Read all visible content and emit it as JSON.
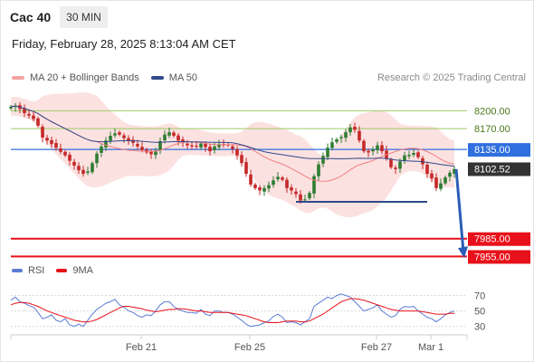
{
  "header": {
    "symbol": "Cac 40",
    "interval": "30 MIN",
    "datetime": "Friday, February 28, 2025 8:13:04 AM CET"
  },
  "credit": "Research © 2025 Trading Central",
  "colors": {
    "bollinger_fill": "#f9c9c9",
    "ma20": "#f08080",
    "ma50": "#2e4a8a",
    "resistance_green": "#9ccc65",
    "level_blue": "#2f6fde",
    "level_red": "#e8101a",
    "arrow": "#2b5db8",
    "candle_up": "#2e7d32",
    "candle_down": "#c62828",
    "rsi": "#5b7bd5",
    "rsi_ma": "#e8101a",
    "last_price": "#333333"
  },
  "chart_data": [
    {
      "type": "candlestick",
      "legend": [
        {
          "label": "MA 20 + Bollinger Bands",
          "color": "#f08080"
        },
        {
          "label": "MA 50",
          "color": "#2e4a8a"
        }
      ],
      "ylim": [
        7945,
        8225
      ],
      "levels": [
        {
          "label": "8200.00",
          "value": 8200,
          "kind": "green-line"
        },
        {
          "label": "8170.00",
          "value": 8170,
          "kind": "green-line"
        },
        {
          "label": "8135.00",
          "value": 8135,
          "kind": "blue-box"
        },
        {
          "label": "8102.52",
          "value": 8102.52,
          "kind": "last-price"
        },
        {
          "label": "7985.00",
          "value": 7985,
          "kind": "red-box"
        },
        {
          "label": "7955.00",
          "value": 7955,
          "kind": "red-box"
        }
      ],
      "support_line": {
        "value": 8047,
        "from_index": 63,
        "to_index": 92
      },
      "forecast_arrow": {
        "from_value": 8102,
        "to_value": 7960
      },
      "closes": [
        8207,
        8209,
        8203,
        8196,
        8192,
        8186,
        8175,
        8155,
        8150,
        8144,
        8138,
        8131,
        8125,
        8116,
        8108,
        8100,
        8094,
        8098,
        8112,
        8128,
        8140,
        8150,
        8158,
        8162,
        8160,
        8154,
        8150,
        8146,
        8140,
        8134,
        8130,
        8127,
        8133,
        8149,
        8160,
        8164,
        8158,
        8150,
        8146,
        8142,
        8140,
        8140,
        8145,
        8139,
        8132,
        8140,
        8144,
        8142,
        8142,
        8136,
        8125,
        8112,
        8094,
        8076,
        8070,
        8066,
        8070,
        8075,
        8083,
        8089,
        8084,
        8070,
        8066,
        8060,
        8049,
        8051,
        8062,
        8090,
        8110,
        8124,
        8138,
        8147,
        8152,
        8156,
        8164,
        8172,
        8168,
        8150,
        8132,
        8130,
        8135,
        8142,
        8132,
        8120,
        8105,
        8102,
        8115,
        8125,
        8126,
        8129,
        8122,
        8110,
        8094,
        8086,
        8070,
        8078,
        8088,
        8096,
        8102
      ],
      "x_ticks": [
        {
          "label": "Feb 21",
          "index": 24
        },
        {
          "label": "Feb 25",
          "index": 48
        },
        {
          "label": "Feb 27",
          "index": 76
        },
        {
          "label": "Mar 1",
          "index": 88
        }
      ]
    },
    {
      "type": "line",
      "legend": [
        {
          "label": "RSI",
          "color": "#5b7bd5"
        },
        {
          "label": "9MA",
          "color": "#e8101a"
        }
      ],
      "ylim": [
        25,
        80
      ],
      "y_ticks": [
        "70",
        "50",
        "30"
      ],
      "series": [
        {
          "name": "RSI",
          "values": [
            64,
            68,
            62,
            60,
            57,
            55,
            48,
            40,
            42,
            45,
            38,
            36,
            40,
            32,
            30,
            33,
            30,
            38,
            46,
            52,
            56,
            60,
            62,
            65,
            58,
            55,
            50,
            48,
            44,
            42,
            45,
            44,
            50,
            58,
            62,
            62,
            56,
            52,
            50,
            48,
            48,
            47,
            52,
            46,
            44,
            50,
            50,
            48,
            48,
            46,
            42,
            38,
            33,
            30,
            31,
            32,
            35,
            37,
            43,
            46,
            42,
            35,
            36,
            35,
            32,
            36,
            40,
            56,
            60,
            64,
            68,
            66,
            70,
            72,
            70,
            68,
            62,
            56,
            50,
            52,
            54,
            58,
            50,
            46,
            42,
            44,
            52,
            56,
            55,
            56,
            50,
            46,
            42,
            40,
            36,
            40,
            45,
            48,
            50
          ]
        },
        {
          "name": "9MA",
          "values": [
            58,
            60,
            61,
            61,
            60,
            58,
            56,
            53,
            50,
            48,
            46,
            44,
            42,
            40,
            38,
            37,
            36,
            36,
            37,
            39,
            42,
            45,
            48,
            51,
            54,
            56,
            56,
            55,
            54,
            53,
            51,
            50,
            49,
            50,
            51,
            52,
            52,
            53,
            53,
            52,
            51,
            50,
            50,
            49,
            48,
            48,
            48,
            48,
            48,
            47,
            46,
            45,
            44,
            42,
            40,
            38,
            36,
            35,
            35,
            35,
            36,
            37,
            37,
            37,
            36,
            36,
            37,
            40,
            43,
            46,
            50,
            54,
            58,
            62,
            64,
            66,
            66,
            65,
            64,
            62,
            60,
            58,
            56,
            54,
            52,
            51,
            50,
            50,
            50,
            50,
            50,
            49,
            48,
            47,
            46,
            46,
            46,
            47,
            47
          ]
        }
      ]
    }
  ]
}
